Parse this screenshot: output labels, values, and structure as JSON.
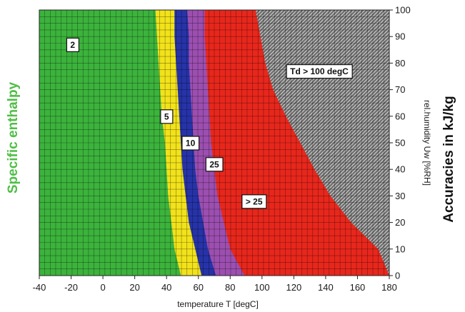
{
  "chart_data": {
    "type": "area",
    "left_title": "Specific enthalpy",
    "right_title": "Accuracies in kJ/kg",
    "xlabel": "temperature T [degC]",
    "ylabel": "rel.humidity Uw [%RH]",
    "xlim": [
      -40,
      180
    ],
    "ylim": [
      0,
      100
    ],
    "x_ticks": [
      "-40",
      "-20",
      "0",
      "20",
      "40",
      "60",
      "80",
      "100",
      "120",
      "140",
      "160",
      "180"
    ],
    "y_ticks": [
      "0",
      "10",
      "20",
      "30",
      "40",
      "50",
      "60",
      "70",
      "80",
      "90",
      "100"
    ],
    "grid": true,
    "rh_levels": [
      0,
      10,
      20,
      30,
      40,
      50,
      60,
      70,
      80,
      90,
      100
    ],
    "zones": [
      {
        "label": "2",
        "color": "#3cb33c",
        "boundary_T": [
          49,
          45,
          43,
          41,
          40,
          39,
          37,
          36,
          35,
          34,
          33
        ]
      },
      {
        "label": "5",
        "color": "#f2e21b",
        "boundary_T": [
          62,
          58,
          54,
          52,
          50,
          49,
          48,
          47,
          46,
          45,
          45
        ]
      },
      {
        "label": "10",
        "color": "#2633a8",
        "boundary_T": [
          71,
          66,
          63,
          60,
          58,
          57,
          56,
          55,
          54,
          54,
          53
        ]
      },
      {
        "label": "25",
        "color": "#9c4fb0",
        "boundary_T": [
          89,
          80,
          76,
          72,
          70,
          68,
          67,
          66,
          65,
          64,
          64
        ]
      },
      {
        "label": "> 25",
        "color": "#e8271c",
        "boundary_T": [
          180,
          173,
          156,
          143,
          133,
          124,
          115,
          107,
          102,
          99,
          96
        ]
      },
      {
        "label": "Td > 100 degC",
        "color": "#7a7a7a"
      }
    ],
    "zone_labels": [
      {
        "text": "2",
        "T": -19,
        "RH": 87
      },
      {
        "text": "5",
        "T": 40,
        "RH": 60
      },
      {
        "text": "10",
        "T": 55,
        "RH": 50
      },
      {
        "text": "25",
        "T": 70,
        "RH": 42
      },
      {
        "text": "> 25",
        "T": 95,
        "RH": 28
      },
      {
        "text": "Td > 100 degC",
        "T": 136,
        "RH": 77
      }
    ]
  }
}
